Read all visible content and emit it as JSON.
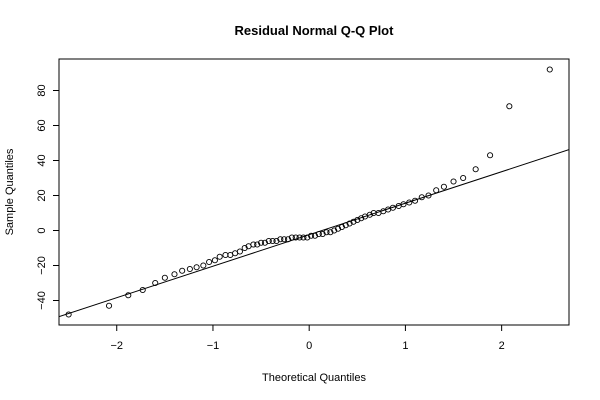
{
  "chart_data": {
    "type": "scatter",
    "title": "Residual Normal Q-Q Plot",
    "xlabel": "Theoretical Quantiles",
    "ylabel": "Sample Quantiles",
    "xlim": [
      -2.6,
      2.7
    ],
    "ylim": [
      -54,
      98
    ],
    "xticks": [
      -2,
      -1,
      0,
      1,
      2
    ],
    "xtick_labels": [
      "−2",
      "−1",
      "0",
      "1",
      "2"
    ],
    "yticks": [
      -40,
      -20,
      0,
      20,
      40,
      60,
      80
    ],
    "ytick_labels": [
      "−40",
      "−20",
      "0",
      "20",
      "40",
      "60",
      "80"
    ],
    "grid": false,
    "reference_line": {
      "intercept": -2.4,
      "slope": 18.0
    },
    "points": {
      "x": [
        -2.5,
        -2.08,
        -1.88,
        -1.73,
        -1.6,
        -1.5,
        -1.4,
        -1.32,
        -1.24,
        -1.17,
        -1.1,
        -1.04,
        -0.98,
        -0.93,
        -0.87,
        -0.82,
        -0.77,
        -0.72,
        -0.67,
        -0.63,
        -0.58,
        -0.54,
        -0.5,
        -0.46,
        -0.42,
        -0.38,
        -0.34,
        -0.3,
        -0.26,
        -0.22,
        -0.18,
        -0.14,
        -0.1,
        -0.06,
        -0.02,
        0.02,
        0.06,
        0.1,
        0.14,
        0.18,
        0.22,
        0.26,
        0.3,
        0.34,
        0.38,
        0.42,
        0.46,
        0.5,
        0.54,
        0.58,
        0.63,
        0.67,
        0.72,
        0.77,
        0.82,
        0.87,
        0.93,
        0.98,
        1.04,
        1.1,
        1.17,
        1.24,
        1.32,
        1.4,
        1.5,
        1.6,
        1.73,
        1.88,
        2.08,
        2.5
      ],
      "y": [
        -48,
        -43,
        -37,
        -34,
        -30,
        -27,
        -25,
        -23,
        -22,
        -21,
        -20,
        -18,
        -17,
        -15,
        -14,
        -14,
        -13,
        -12,
        -10,
        -9,
        -8,
        -8,
        -7,
        -7,
        -6,
        -6,
        -6,
        -5,
        -5,
        -5,
        -4,
        -4,
        -4,
        -4,
        -4,
        -3,
        -3,
        -2,
        -2,
        -1,
        -1,
        0,
        1,
        2,
        3,
        4,
        5,
        6,
        7,
        8,
        9,
        10,
        10,
        11,
        12,
        13,
        14,
        15,
        16,
        17,
        19,
        20,
        23,
        25,
        28,
        30,
        35,
        43,
        71,
        92
      ]
    }
  }
}
